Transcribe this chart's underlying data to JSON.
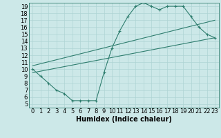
{
  "xlabel": "Humidex (Indice chaleur)",
  "background_color": "#cce8e8",
  "line_color": "#2e7d6e",
  "grid_color": "#aed4d4",
  "xlim": [
    -0.5,
    23.5
  ],
  "ylim": [
    4.5,
    19.5
  ],
  "xticks": [
    0,
    1,
    2,
    3,
    4,
    5,
    6,
    7,
    8,
    9,
    10,
    11,
    12,
    13,
    14,
    15,
    16,
    17,
    18,
    19,
    20,
    21,
    22,
    23
  ],
  "yticks": [
    5,
    6,
    7,
    8,
    9,
    10,
    11,
    12,
    13,
    14,
    15,
    16,
    17,
    18,
    19
  ],
  "curve1_x": [
    0,
    1,
    2,
    3,
    4,
    5,
    6,
    7,
    8,
    9,
    10,
    11,
    12,
    13,
    14,
    15,
    16,
    17,
    18,
    19,
    20,
    21,
    22,
    23
  ],
  "curve1_y": [
    10,
    9,
    8,
    7,
    6.5,
    5.5,
    5.5,
    5.5,
    5.5,
    9.5,
    13,
    15.5,
    17.5,
    19,
    19.5,
    19,
    18.5,
    19,
    19,
    19,
    17.5,
    16,
    15,
    14.5
  ],
  "line1_x": [
    0,
    23
  ],
  "line1_y": [
    9.5,
    14.5
  ],
  "line2_x": [
    0,
    23
  ],
  "line2_y": [
    10.5,
    17.0
  ],
  "font_size": 6.0,
  "xlabel_fontsize": 7.0
}
